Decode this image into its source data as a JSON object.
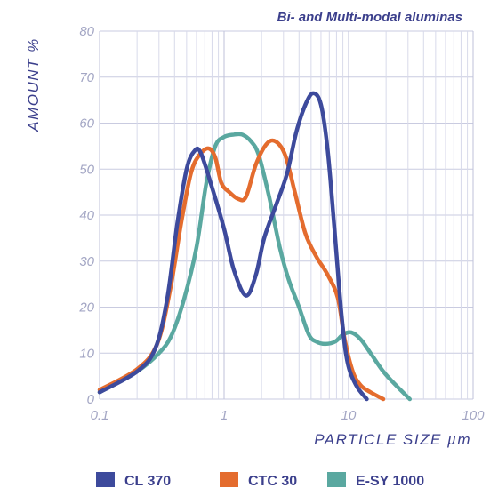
{
  "chart_data": {
    "type": "line",
    "title": "Bi- and Multi-modal aluminas",
    "xlabel": "PARTICLE SIZE µm",
    "ylabel": "AMOUNT %",
    "xscale": "log",
    "xlim": [
      0.1,
      100
    ],
    "ylim": [
      0,
      80
    ],
    "x_ticks": [
      "0.1",
      "1",
      "10",
      "100"
    ],
    "y_ticks": [
      "0",
      "10",
      "20",
      "30",
      "40",
      "50",
      "60",
      "70",
      "80"
    ],
    "grid": true,
    "legend_position": "bottom",
    "series": [
      {
        "name": "CL 370",
        "color": "#3d4a9c",
        "points": [
          [
            0.1,
            1.5
          ],
          [
            0.2,
            6
          ],
          [
            0.28,
            11
          ],
          [
            0.35,
            22
          ],
          [
            0.42,
            38
          ],
          [
            0.5,
            50
          ],
          [
            0.58,
            54
          ],
          [
            0.65,
            53.5
          ],
          [
            0.8,
            46
          ],
          [
            1,
            37
          ],
          [
            1.2,
            28
          ],
          [
            1.5,
            22.5
          ],
          [
            1.8,
            27
          ],
          [
            2.1,
            35
          ],
          [
            2.6,
            42
          ],
          [
            3.2,
            49
          ],
          [
            3.8,
            58
          ],
          [
            4.5,
            64
          ],
          [
            5.2,
            66.5
          ],
          [
            6.0,
            64
          ],
          [
            6.8,
            54
          ],
          [
            7.7,
            37
          ],
          [
            8.8,
            18
          ],
          [
            9.8,
            8
          ],
          [
            11.5,
            3
          ],
          [
            14,
            0
          ]
        ]
      },
      {
        "name": "CTC 30",
        "color": "#e46c2e",
        "points": [
          [
            0.1,
            2
          ],
          [
            0.2,
            6.5
          ],
          [
            0.29,
            12
          ],
          [
            0.37,
            24
          ],
          [
            0.45,
            38
          ],
          [
            0.54,
            49
          ],
          [
            0.63,
            53
          ],
          [
            0.75,
            54.5
          ],
          [
            0.85,
            52.5
          ],
          [
            0.95,
            47
          ],
          [
            1.1,
            45
          ],
          [
            1.3,
            43.5
          ],
          [
            1.5,
            44
          ],
          [
            1.8,
            51
          ],
          [
            2.2,
            55.5
          ],
          [
            2.6,
            56
          ],
          [
            3.1,
            53
          ],
          [
            3.7,
            45
          ],
          [
            4.5,
            36
          ],
          [
            5.5,
            31
          ],
          [
            6.8,
            27
          ],
          [
            8.2,
            22
          ],
          [
            9.3,
            13
          ],
          [
            10.8,
            6
          ],
          [
            12.5,
            3
          ],
          [
            15,
            1.5
          ],
          [
            19,
            0
          ]
        ]
      },
      {
        "name": "E-SY 1000",
        "color": "#5aa8a0",
        "points": [
          [
            0.1,
            1.5
          ],
          [
            0.2,
            6
          ],
          [
            0.3,
            10
          ],
          [
            0.38,
            14
          ],
          [
            0.48,
            22
          ],
          [
            0.6,
            33
          ],
          [
            0.72,
            47
          ],
          [
            0.85,
            55
          ],
          [
            1.0,
            57
          ],
          [
            1.2,
            57.5
          ],
          [
            1.4,
            57.5
          ],
          [
            1.65,
            56
          ],
          [
            1.9,
            53
          ],
          [
            2.3,
            44
          ],
          [
            2.8,
            33
          ],
          [
            3.3,
            26
          ],
          [
            4.0,
            20
          ],
          [
            4.8,
            14
          ],
          [
            5.5,
            12.5
          ],
          [
            6.5,
            12
          ],
          [
            7.8,
            12.5
          ],
          [
            9.0,
            14
          ],
          [
            10.5,
            14.5
          ],
          [
            12.5,
            13
          ],
          [
            15,
            10
          ],
          [
            19,
            6
          ],
          [
            24,
            3
          ],
          [
            31,
            0
          ]
        ]
      }
    ]
  }
}
